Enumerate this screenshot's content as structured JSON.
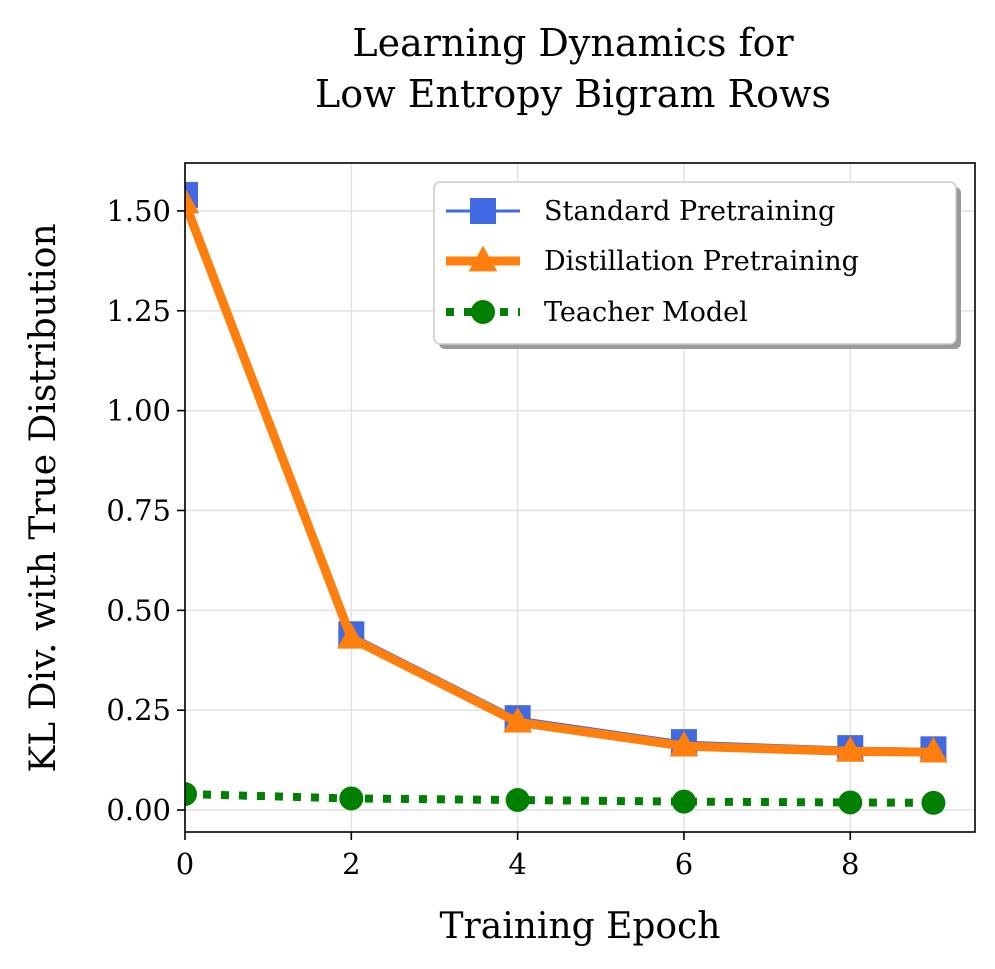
{
  "chart_data": {
    "type": "line",
    "title_lines": [
      "Learning Dynamics for",
      "Low Entropy Bigram Rows"
    ],
    "xlabel": "Training Epoch",
    "ylabel": "KL Div. with True Distribution",
    "xlim": [
      0,
      9.5
    ],
    "ylim": [
      -0.055,
      1.62
    ],
    "xticks": [
      0,
      2,
      4,
      6,
      8
    ],
    "xtick_labels": [
      "0",
      "2",
      "4",
      "6",
      "8"
    ],
    "yticks": [
      0.0,
      0.25,
      0.5,
      0.75,
      1.0,
      1.25,
      1.5
    ],
    "ytick_labels": [
      "0.00",
      "0.25",
      "0.50",
      "0.75",
      "1.00",
      "1.25",
      "1.50"
    ],
    "grid": true,
    "legend_position": "top-right",
    "x": [
      0,
      2,
      4,
      6,
      8,
      9
    ],
    "series": [
      {
        "name": "Standard Pretraining",
        "values": [
          1.54,
          0.44,
          0.23,
          0.17,
          0.155,
          0.152
        ],
        "color": "#4169e1",
        "marker": "square",
        "line_style": "solid"
      },
      {
        "name": "Distillation Pretraining",
        "values": [
          1.52,
          0.43,
          0.22,
          0.16,
          0.147,
          0.145
        ],
        "color": "#ff7f0e",
        "marker": "triangle",
        "line_style": "solid"
      },
      {
        "name": "Teacher Model",
        "values": [
          0.04,
          0.029,
          0.025,
          0.021,
          0.019,
          0.018
        ],
        "color": "#008000",
        "marker": "circle",
        "line_style": "dotted"
      }
    ]
  }
}
